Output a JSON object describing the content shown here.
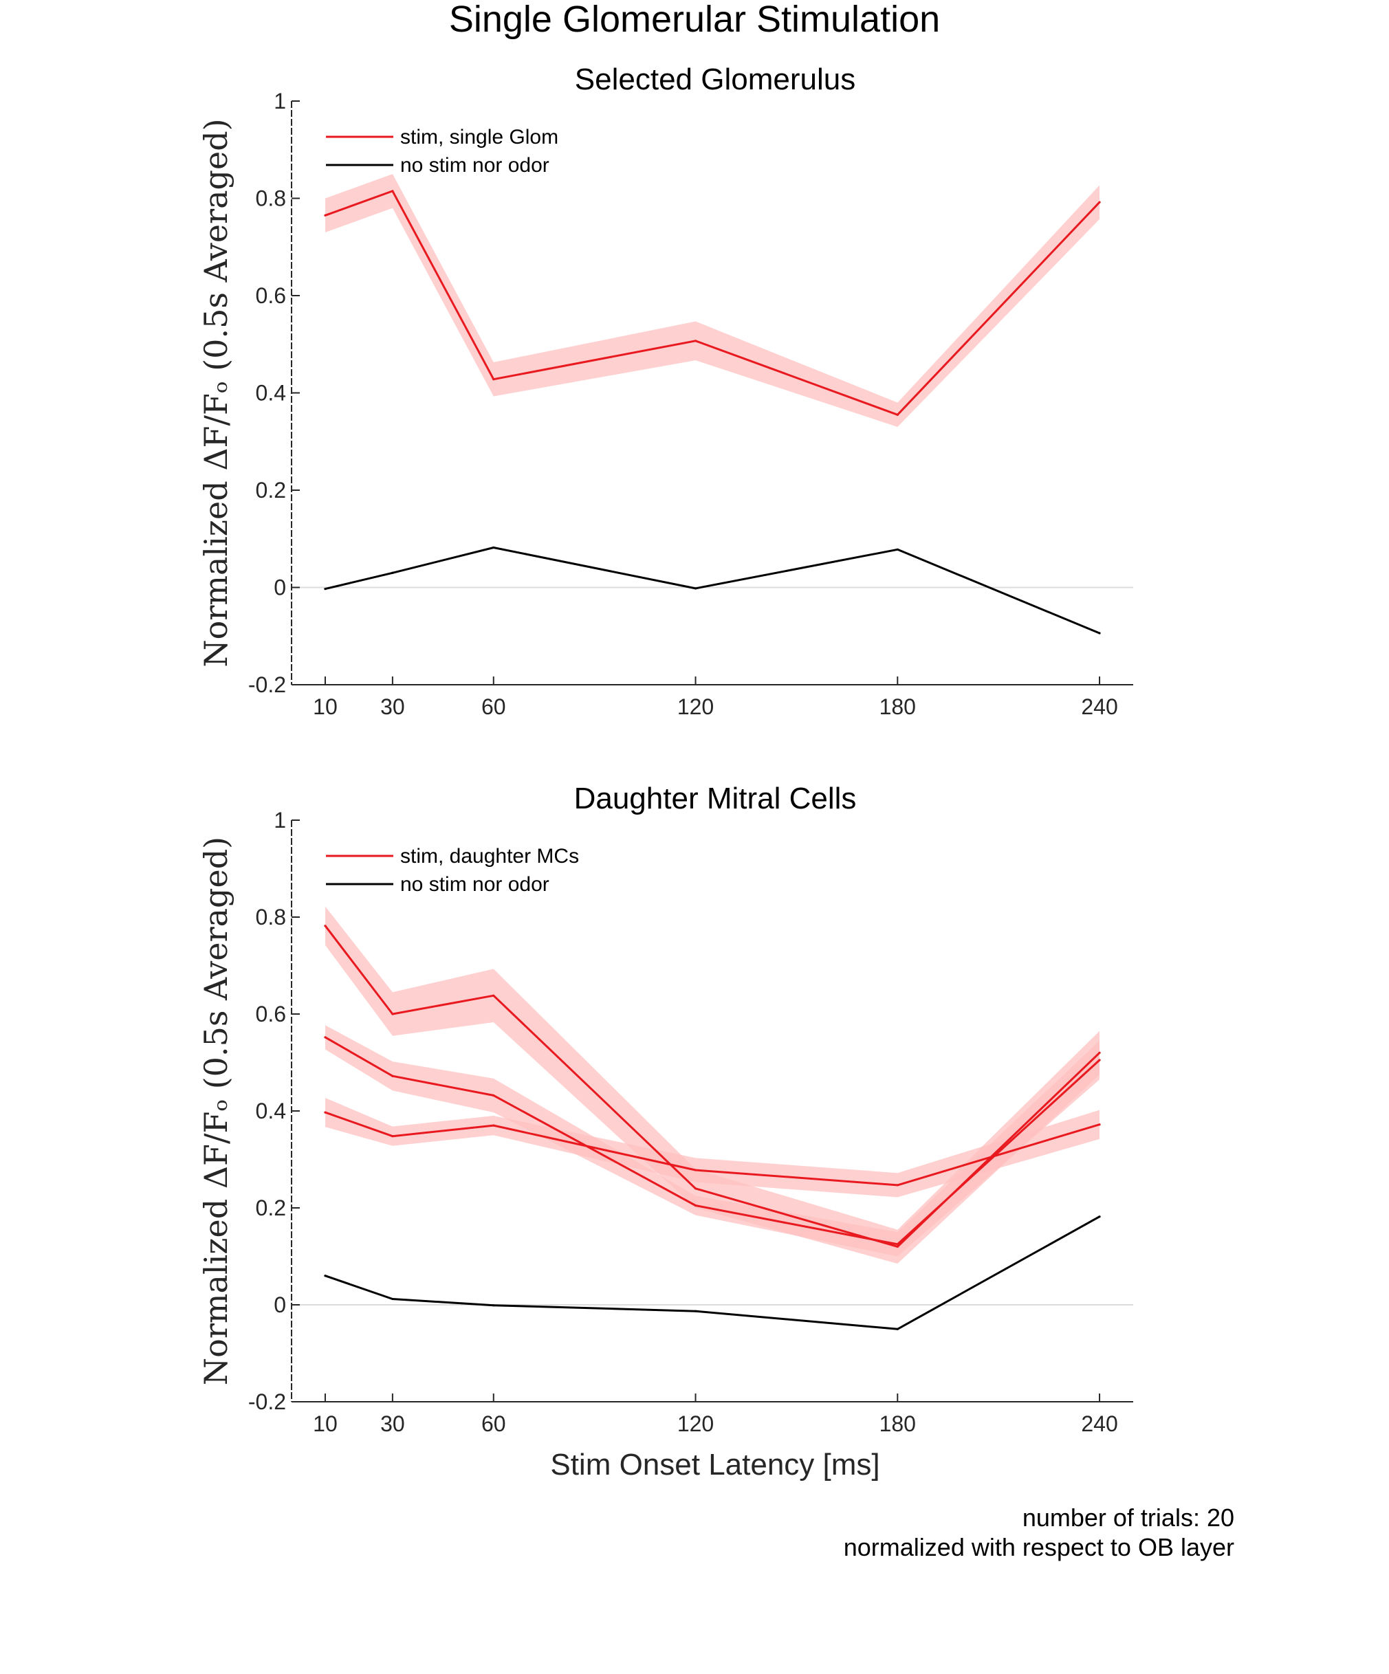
{
  "figure": {
    "suptitle": "Single Glomerular Stimulation",
    "notes": [
      "number of trials: 20",
      "normalized with respect to OB layer"
    ]
  },
  "chart_data": [
    {
      "type": "line",
      "title": "Selected Glomerulus",
      "ylabel": "Normalized ΔF/Fₒ (0.5s Averaged)",
      "xlabel": "",
      "x": [
        10,
        30,
        60,
        120,
        180,
        240
      ],
      "xlim": [
        0,
        250
      ],
      "ylim": [
        -0.2,
        1
      ],
      "yticks": [
        -0.2,
        0,
        0.2,
        0.4,
        0.6,
        0.8,
        1
      ],
      "yticklabels": [
        "-0.2",
        "0",
        "0.2",
        "0.4",
        "0.6",
        "0.8",
        "1"
      ],
      "xticklabels": [
        "10",
        "30",
        "60",
        "120",
        "180",
        "240"
      ],
      "zero_line": true,
      "legend_position": "top-left",
      "series": [
        {
          "name": "stim, single Glom",
          "color": "#e8191f",
          "band_color": "#ffc0c0",
          "values": [
            0.765,
            0.815,
            0.428,
            0.507,
            0.355,
            0.792
          ],
          "err": [
            0.035,
            0.035,
            0.035,
            0.04,
            0.025,
            0.035
          ]
        },
        {
          "name": "no stim nor odor",
          "color": "#000000",
          "values": [
            -0.003,
            0.03,
            0.082,
            -0.002,
            0.078,
            -0.094
          ],
          "err": [
            0,
            0,
            0,
            0,
            0,
            0
          ]
        }
      ]
    },
    {
      "type": "line",
      "title": "Daughter Mitral Cells",
      "ylabel": "Normalized ΔF/Fₒ (0.5s Averaged)",
      "xlabel": "Stim Onset Latency [ms]",
      "x": [
        10,
        30,
        60,
        120,
        180,
        240
      ],
      "xlim": [
        0,
        250
      ],
      "ylim": [
        -0.2,
        1
      ],
      "yticks": [
        -0.2,
        0,
        0.2,
        0.4,
        0.6,
        0.8,
        1
      ],
      "yticklabels": [
        "-0.2",
        "0",
        "0.2",
        "0.4",
        "0.6",
        "0.8",
        "1"
      ],
      "xticklabels": [
        "10",
        "30",
        "60",
        "120",
        "180",
        "240"
      ],
      "zero_line": true,
      "legend_position": "top-left",
      "series": [
        {
          "name": "stim, daughter MCs",
          "color": "#e8191f",
          "band_color": "#ffc0c0",
          "values": [
            0.782,
            0.6,
            0.638,
            0.24,
            0.12,
            0.52
          ],
          "err": [
            0.04,
            0.045,
            0.055,
            0.04,
            0.035,
            0.045
          ]
        },
        {
          "name": "",
          "color": "#e8191f",
          "band_color": "#ffc0c0",
          "values": [
            0.552,
            0.472,
            0.432,
            0.205,
            0.125,
            0.505
          ],
          "err": [
            0.025,
            0.03,
            0.035,
            0.02,
            0.025,
            0.04
          ]
        },
        {
          "name": "",
          "color": "#e8191f",
          "band_color": "#ffc0c0",
          "values": [
            0.397,
            0.348,
            0.37,
            0.278,
            0.247,
            0.372
          ],
          "err": [
            0.03,
            0.02,
            0.02,
            0.025,
            0.025,
            0.03
          ]
        },
        {
          "name": "no stim nor odor",
          "color": "#000000",
          "values": [
            0.06,
            0.012,
            -0.001,
            -0.013,
            -0.05,
            0.182
          ],
          "err": [
            0,
            0,
            0,
            0,
            0,
            0
          ]
        }
      ]
    }
  ]
}
